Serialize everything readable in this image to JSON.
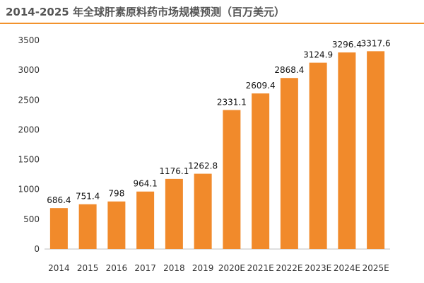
{
  "title": "2014-2025 年全球肝素原料药市场规模预测（百万美元）",
  "colors": {
    "bar": "#f18a2b",
    "rule": "#f2922c",
    "axis": "#bfbfbf"
  },
  "chart_data": {
    "type": "bar",
    "title": "2014-2025 年全球肝素原料药市场规模预测（百万美元）",
    "categories": [
      "2014",
      "2015",
      "2016",
      "2017",
      "2018",
      "2019",
      "2020E",
      "2021E",
      "2022E",
      "2023E",
      "2024E",
      "2025E"
    ],
    "values": [
      686.4,
      751.4,
      798,
      964.1,
      1176.1,
      1262.8,
      2331.1,
      2609.4,
      2868.4,
      3124.9,
      3296.4,
      3317.6
    ],
    "data_labels": [
      "686.4",
      "751.4",
      "798",
      "964.1",
      "1176.1",
      "1262.8",
      "2331.1",
      "2609.4",
      "2868.4",
      "3124.9",
      "3296.4",
      "3317.6"
    ],
    "yticks": [
      "0",
      "500",
      "1000",
      "1500",
      "2000",
      "2500",
      "3000",
      "3500"
    ],
    "ylim": [
      0,
      3500
    ],
    "xlabel": "",
    "ylabel": "",
    "grid": false,
    "legend": "none"
  }
}
